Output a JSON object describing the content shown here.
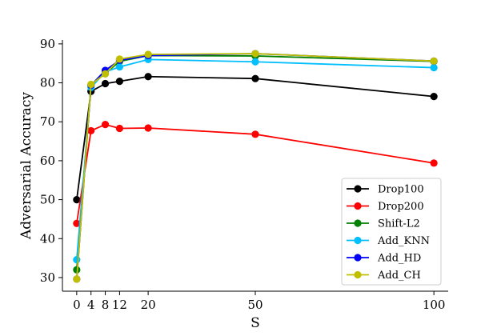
{
  "chart_data": {
    "type": "line",
    "title": "",
    "xlabel": "S",
    "ylabel": "Adversarial Accuracy",
    "x": [
      0,
      4,
      8,
      12,
      20,
      50,
      100
    ],
    "xticks": [
      "0",
      "4",
      "8",
      "12",
      "20",
      "50",
      "100"
    ],
    "yticks": [
      "30",
      "40",
      "50",
      "60",
      "70",
      "80",
      "90"
    ],
    "xlim": [
      -4,
      104
    ],
    "ylim": [
      26.5,
      91
    ],
    "grid": false,
    "legend_position": "bottom-right",
    "series": [
      {
        "name": "Drop100",
        "color": "#000000",
        "values": [
          50.0,
          77.8,
          79.8,
          80.4,
          81.6,
          81.1,
          76.5
        ]
      },
      {
        "name": "Drop200",
        "color": "#ff0000",
        "values": [
          43.9,
          67.7,
          69.3,
          68.3,
          68.4,
          66.8,
          59.4
        ]
      },
      {
        "name": "Shift-L2",
        "color": "#008000",
        "values": [
          32.0,
          79.5,
          82.4,
          85.5,
          87.0,
          86.9,
          85.5
        ]
      },
      {
        "name": "Add_KNN",
        "color": "#00bfff",
        "values": [
          34.6,
          78.8,
          82.8,
          84.1,
          86.0,
          85.4,
          83.9
        ]
      },
      {
        "name": "Add_HD",
        "color": "#0000ff",
        "values": [
          29.6,
          79.4,
          83.2,
          85.8,
          87.0,
          87.5,
          85.6
        ]
      },
      {
        "name": "Add_CH",
        "color": "#bfbf00",
        "values": [
          29.6,
          79.6,
          82.3,
          86.1,
          87.3,
          87.5,
          85.6
        ]
      }
    ]
  }
}
